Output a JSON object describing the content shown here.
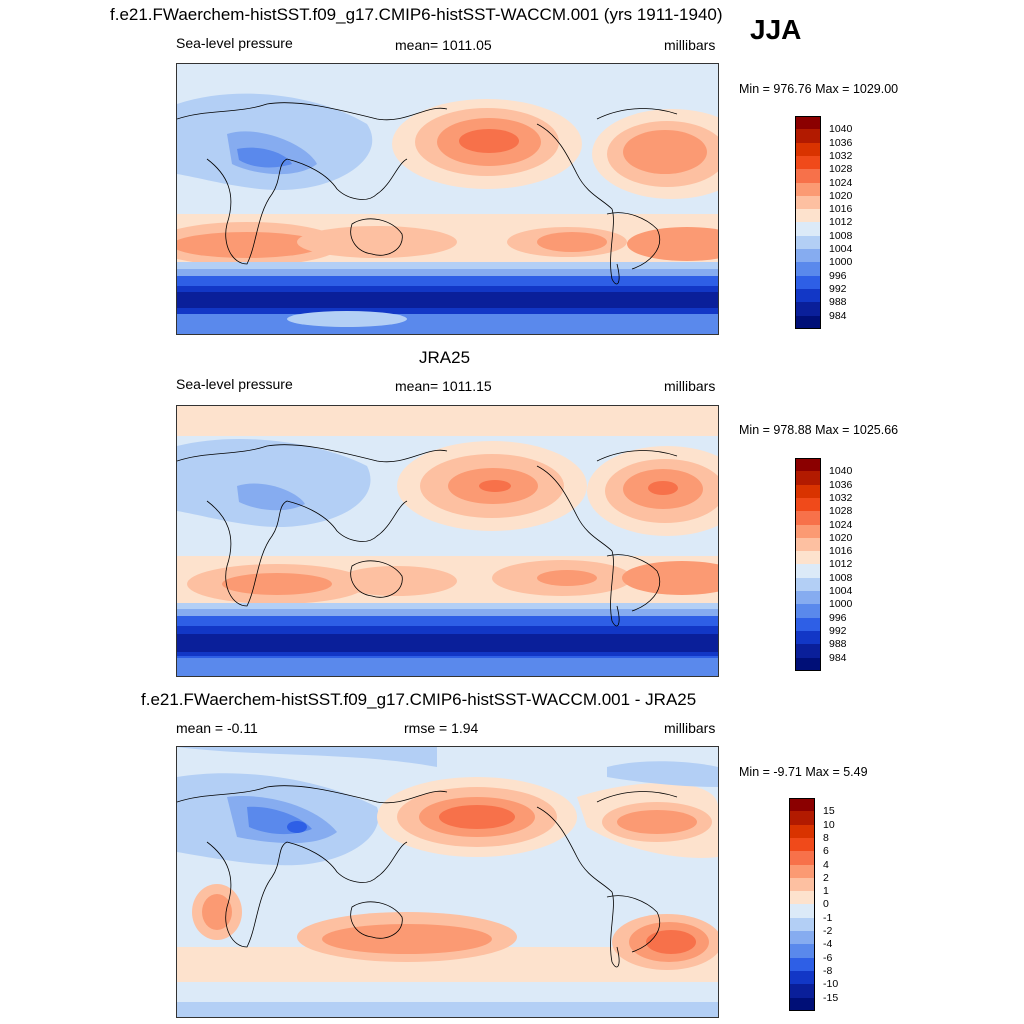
{
  "season": "JJA",
  "panels": [
    {
      "id": "model",
      "title": "f.e21.FWaerchem-histSST.f09_g17.CMIP6-histSST-WACCM.001 (yrs 1911-1940)",
      "left_label": "Sea-level pressure",
      "center_label": "mean= 1011.05",
      "right_label": "millibars",
      "minmax": "Min = 976.76 Max = 1029.00",
      "colorbar_labels": [
        "1040",
        "1036",
        "1032",
        "1028",
        "1024",
        "1020",
        "1016",
        "1012",
        "1008",
        "1004",
        "1000",
        "996",
        "992",
        "988",
        "984"
      ],
      "colorbar_colors": [
        "#8b0000",
        "#b21a00",
        "#d93300",
        "#f04a1a",
        "#f7714a",
        "#fb9a73",
        "#fdc0a1",
        "#fde2cd",
        "#dceaf8",
        "#b3cff5",
        "#86acf0",
        "#5a89ec",
        "#2e5fe6",
        "#1237c6",
        "#0a1f9a",
        "#000f77"
      ]
    },
    {
      "id": "obs",
      "title": "JRA25",
      "left_label": "Sea-level pressure",
      "center_label": "mean= 1011.15",
      "right_label": "millibars",
      "minmax": "Min = 978.88 Max = 1025.66",
      "colorbar_labels": [
        "1040",
        "1036",
        "1032",
        "1028",
        "1024",
        "1020",
        "1016",
        "1012",
        "1008",
        "1004",
        "1000",
        "996",
        "992",
        "988",
        "984"
      ],
      "colorbar_colors": [
        "#8b0000",
        "#b21a00",
        "#d93300",
        "#f04a1a",
        "#f7714a",
        "#fb9a73",
        "#fdc0a1",
        "#fde2cd",
        "#dceaf8",
        "#b3cff5",
        "#86acf0",
        "#5a89ec",
        "#2e5fe6",
        "#1237c6",
        "#0a1f9a",
        "#000f77"
      ]
    },
    {
      "id": "diff",
      "title": "f.e21.FWaerchem-histSST.f09_g17.CMIP6-histSST-WACCM.001 - JRA25",
      "left_label": "mean =  -0.11",
      "center_label": "rmse =   1.94",
      "right_label": "millibars",
      "minmax": "Min =  -9.71 Max =   5.49",
      "colorbar_labels": [
        "15",
        "10",
        "8",
        "6",
        "4",
        "2",
        "1",
        "0",
        "-1",
        "-2",
        "-4",
        "-6",
        "-8",
        "-10",
        "-15"
      ],
      "colorbar_colors": [
        "#8b0000",
        "#b21a00",
        "#d93300",
        "#f04a1a",
        "#f7714a",
        "#fb9a73",
        "#fdc0a1",
        "#fde2cd",
        "#dceaf8",
        "#b3cff5",
        "#86acf0",
        "#5a89ec",
        "#2e5fe6",
        "#1237c6",
        "#0a1f9a",
        "#000f77"
      ]
    }
  ]
}
